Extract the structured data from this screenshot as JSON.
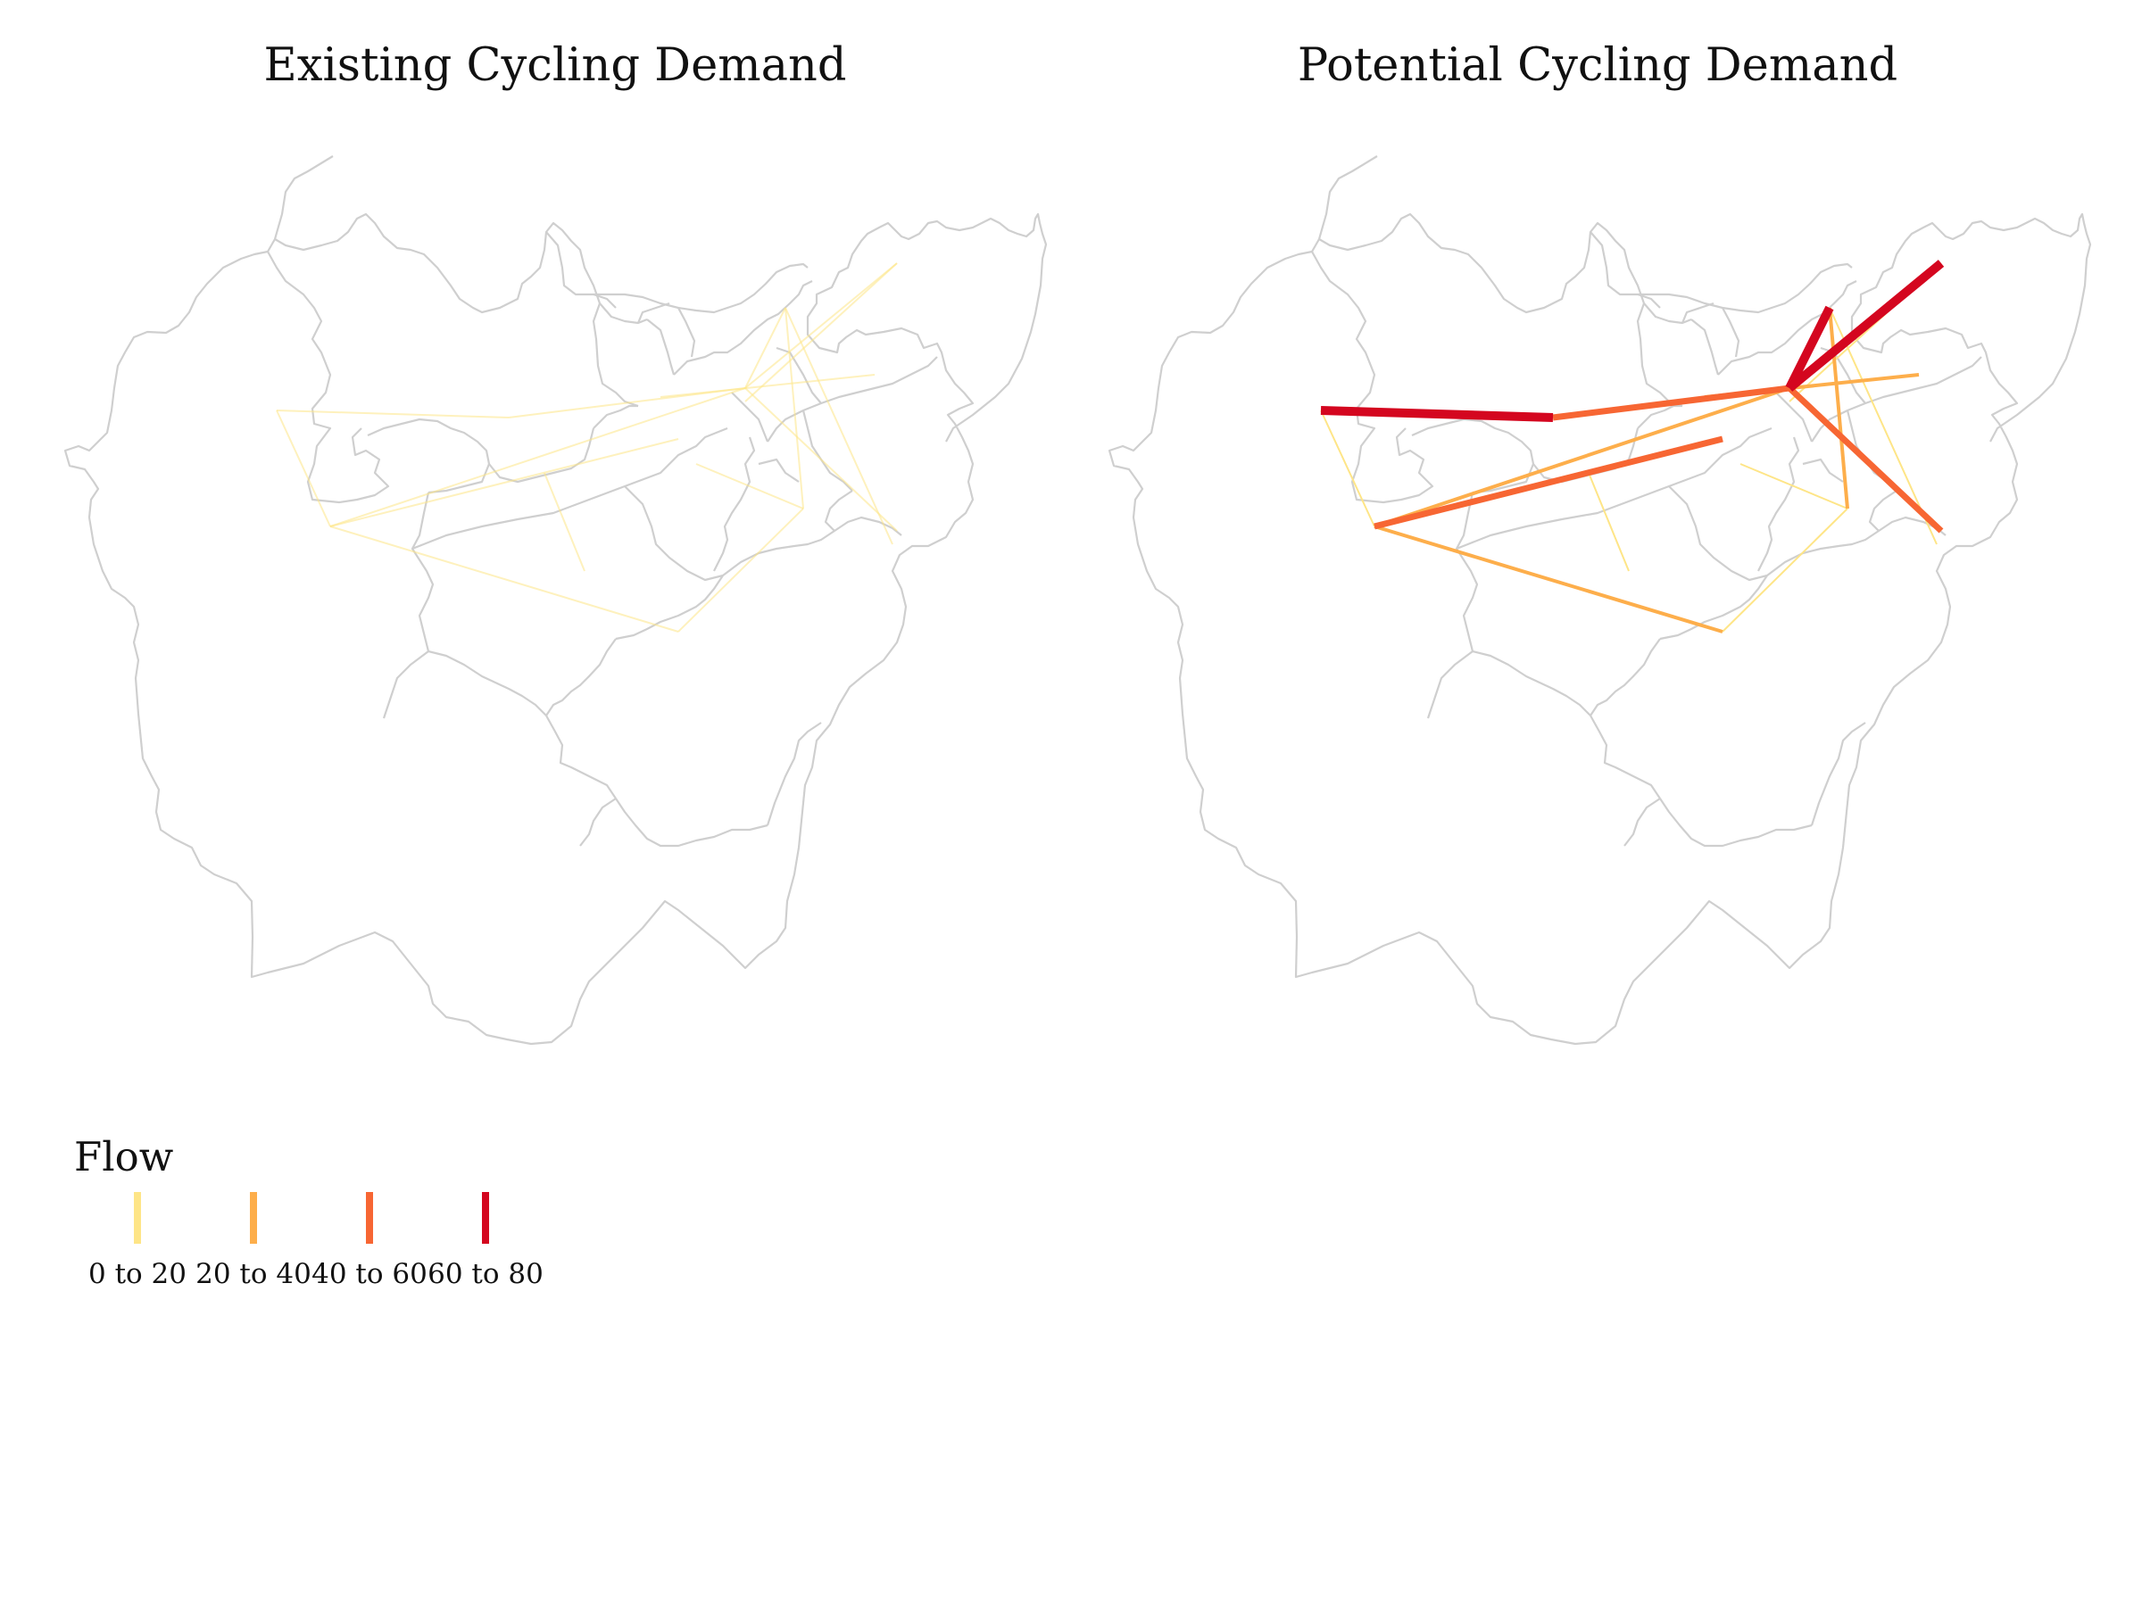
{
  "panels": [
    {
      "title": "Existing Cycling Demand"
    },
    {
      "title": "Potential Cycling Demand"
    }
  ],
  "legend": {
    "title": "Flow",
    "items": [
      {
        "label": "0 to 20",
        "color": "#fee587"
      },
      {
        "label": "20 to 40",
        "color": "#fdae4b"
      },
      {
        "label": "40 to 60",
        "color": "#f76633"
      },
      {
        "label": "60 to 80",
        "color": "#d4061f"
      }
    ]
  },
  "colors": {
    "boundary": "#cfcfcf",
    "background": "#ffffff"
  },
  "flows": {
    "existing_all_in_range": "0 to 20",
    "potential_class_counts": {
      "0 to 20": 6,
      "20 to 40": 4,
      "40 to 60": 3,
      "60 to 80": 3
    }
  }
}
